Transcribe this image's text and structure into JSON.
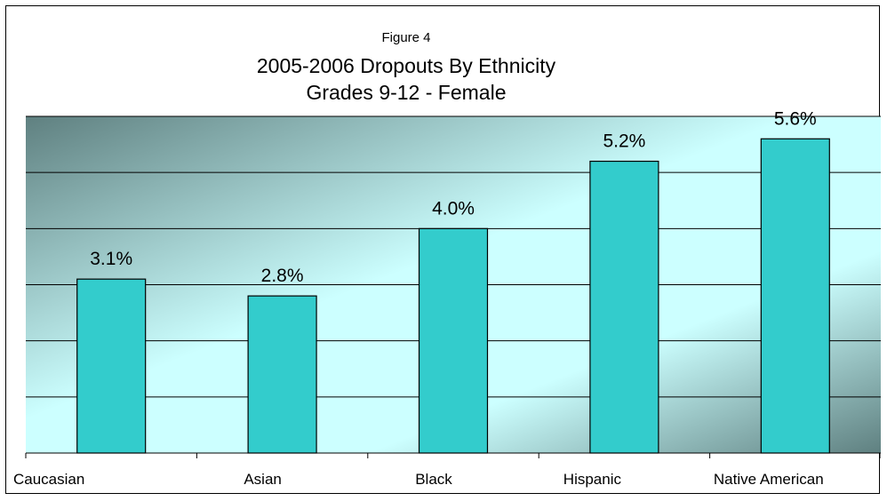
{
  "chart_data": {
    "type": "bar",
    "figure_label": "Figure 4",
    "title": "2005-2006 Dropouts By Ethnicity",
    "subtitle": "Grades 9-12 - Female",
    "categories": [
      "Caucasian",
      "Asian",
      "Black",
      "Hispanic",
      "Native American"
    ],
    "values": [
      3.1,
      2.8,
      4.0,
      5.2,
      5.6
    ],
    "value_labels": [
      "3.1%",
      "2.8%",
      "4.0%",
      "5.2%",
      "5.6%"
    ],
    "ylim": [
      0,
      6.0
    ],
    "grid": true,
    "legend": "none",
    "bar_color": "#33CCCC",
    "plot_gradient": [
      "#5f8080",
      "#ccffff"
    ]
  }
}
